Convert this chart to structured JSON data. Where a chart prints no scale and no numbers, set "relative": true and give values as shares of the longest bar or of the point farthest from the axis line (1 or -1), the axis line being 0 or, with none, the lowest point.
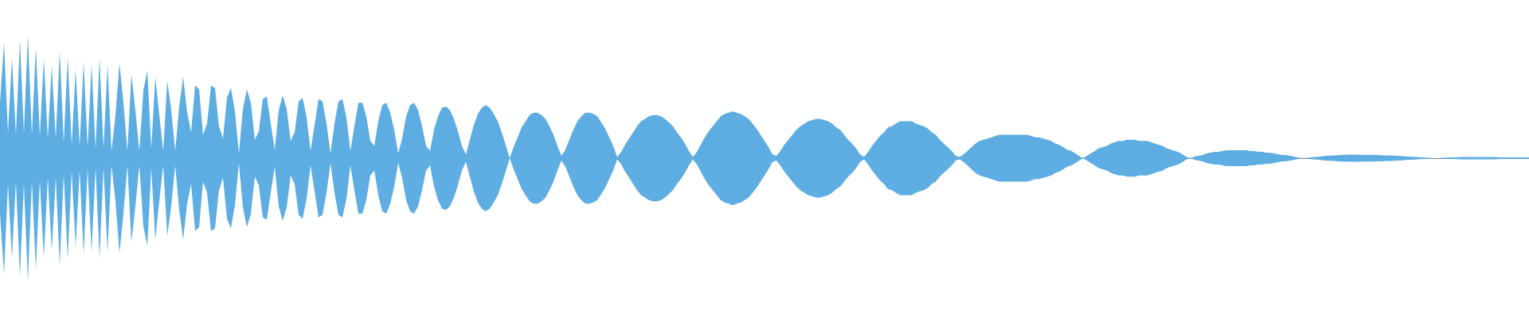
{
  "chart_data": {
    "type": "area",
    "relative": true,
    "categories": [
      null,
      null,
      null,
      null,
      null,
      null,
      null,
      null,
      null,
      null,
      null,
      null,
      null,
      null,
      null,
      null,
      null,
      null,
      null,
      null,
      null,
      null,
      null,
      null,
      null,
      null,
      null,
      null,
      null,
      null,
      null,
      null,
      null,
      null,
      null,
      null,
      null,
      null,
      null,
      null,
      null,
      null,
      null,
      null,
      null,
      null,
      null,
      null,
      null,
      null,
      null,
      null,
      null,
      null,
      null,
      null,
      null,
      null,
      null,
      null,
      null,
      null,
      null,
      null,
      null,
      null,
      null,
      null,
      null,
      null,
      null,
      null,
      null,
      null,
      null,
      null,
      null,
      null,
      null,
      null,
      null,
      null,
      null,
      null,
      null,
      null,
      null,
      null,
      null,
      null,
      null,
      null,
      null,
      null,
      null,
      null,
      null,
      null,
      null,
      null,
      null,
      null,
      null,
      null,
      null,
      null,
      null,
      null,
      null,
      null,
      null,
      null,
      null,
      null,
      null,
      null,
      null,
      null,
      null,
      null,
      null,
      null,
      null,
      null,
      null,
      null,
      null,
      null,
      null,
      null,
      null,
      null,
      null,
      null,
      null,
      null,
      null,
      null,
      null,
      null,
      null,
      null,
      null,
      null,
      null,
      null,
      null,
      null,
      null,
      null,
      null,
      null,
      null,
      null,
      null,
      null,
      null,
      null,
      null,
      null,
      null,
      null,
      null,
      null,
      null,
      null,
      null,
      null,
      null,
      null,
      null,
      null,
      null,
      null,
      null,
      null,
      null,
      null,
      null,
      null,
      null,
      null,
      null,
      null,
      null,
      null,
      null,
      null,
      null,
      null,
      null,
      null,
      null,
      null,
      null,
      null,
      null,
      null,
      null,
      null,
      null,
      null,
      null,
      null,
      null,
      null,
      null,
      null,
      null,
      null,
      null,
      null,
      null,
      null,
      null,
      null,
      null,
      null,
      null,
      null,
      null,
      null,
      null,
      null,
      null,
      null,
      null,
      null,
      null,
      null,
      null,
      null,
      null,
      null,
      null,
      null,
      null,
      null,
      null,
      null,
      null,
      null,
      null,
      null,
      null,
      null,
      null,
      null,
      null,
      null,
      null,
      null,
      null,
      null,
      null,
      null,
      null,
      null,
      null,
      null,
      null,
      null,
      null,
      null,
      null,
      null,
      null,
      null,
      null,
      null,
      null,
      null,
      null,
      null,
      null,
      null,
      null,
      null,
      null,
      null,
      null,
      null,
      null,
      null,
      null,
      null,
      null,
      null,
      null,
      null,
      null,
      null,
      null,
      null,
      null,
      null,
      null,
      null,
      null,
      null,
      null,
      null,
      null,
      null,
      null,
      null,
      null,
      null,
      null,
      null,
      null,
      null,
      null,
      null,
      null,
      null,
      null,
      null,
      null,
      null,
      null,
      null,
      null,
      null,
      null,
      null,
      null,
      null,
      null,
      null,
      null,
      null,
      null,
      null,
      null,
      null,
      null,
      null,
      null,
      null,
      null,
      null,
      null,
      null,
      null,
      null,
      null,
      null,
      null,
      null,
      null,
      null,
      null,
      null,
      null,
      null,
      null,
      null,
      null,
      null,
      null,
      null,
      null,
      null,
      null,
      null,
      null,
      null,
      null,
      null,
      null,
      null,
      null,
      null,
      null,
      null,
      null,
      null,
      null,
      null,
      null,
      null,
      null,
      null,
      null
    ],
    "series": [
      {
        "color": "#5dade2",
        "values": [
          0.45,
          0.94,
          0.21,
          0.81,
          0.19,
          0.96,
          0.21,
          1,
          0.19,
          0.9,
          0.18,
          0.81,
          0.16,
          0.75,
          0.16,
          0.87,
          0.13,
          0.82,
          0.11,
          0.72,
          0.1,
          0.78,
          0.09,
          0.76,
          0.08,
          0.81,
          0.08,
          0.76,
          0.06,
          0.35,
          0.77,
          0.45,
          0.06,
          0.68,
          0.39,
          0.06,
          0.55,
          0.71,
          0.08,
          0.66,
          0.35,
          0.06,
          0.63,
          0.39,
          0.06,
          0.42,
          0.66,
          0.37,
          0.21,
          0.59,
          0.56,
          0.19,
          0.28,
          0.59,
          0.57,
          0.26,
          0.16,
          0.49,
          0.57,
          0.38,
          0.04,
          0.4,
          0.56,
          0.45,
          0.15,
          0.22,
          0.48,
          0.5,
          0.28,
          0.07,
          0.39,
          0.51,
          0.4,
          0.14,
          0.21,
          0.46,
          0.49,
          0.33,
          0.06,
          0.27,
          0.48,
          0.46,
          0.28,
          0.04,
          0.28,
          0.46,
          0.48,
          0.33,
          0.06,
          0.26,
          0.45,
          0.45,
          0.34,
          0.14,
          0.1,
          0.3,
          0.43,
          0.45,
          0.37,
          0.23,
          0.04,
          0.16,
          0.34,
          0.43,
          0.45,
          0.39,
          0.26,
          0.1,
          0.06,
          0.23,
          0.34,
          0.41,
          0.42,
          0.39,
          0.32,
          0.22,
          0.1,
          0.03,
          0.15,
          0.27,
          0.36,
          0.41,
          0.43,
          0.41,
          0.36,
          0.3,
          0.21,
          0.11,
          0,
          0.09,
          0.17,
          0.25,
          0.3,
          0.35,
          0.37,
          0.37,
          0.35,
          0.32,
          0.26,
          0.19,
          0.1,
          0.02,
          0.07,
          0.15,
          0.23,
          0.3,
          0.34,
          0.37,
          0.37,
          0.36,
          0.34,
          0.29,
          0.24,
          0.17,
          0.1,
          0.01,
          0.05,
          0.11,
          0.16,
          0.21,
          0.26,
          0.3,
          0.32,
          0.34,
          0.35,
          0.35,
          0.34,
          0.32,
          0.29,
          0.26,
          0.21,
          0.17,
          0.12,
          0.06,
          0.01,
          0.05,
          0.11,
          0.17,
          0.22,
          0.26,
          0.3,
          0.34,
          0.36,
          0.37,
          0.38,
          0.37,
          0.36,
          0.34,
          0.32,
          0.28,
          0.24,
          0.19,
          0.14,
          0.09,
          0.03,
          0.02,
          0.06,
          0.11,
          0.15,
          0.19,
          0.23,
          0.26,
          0.28,
          0.3,
          0.31,
          0.32,
          0.32,
          0.31,
          0.3,
          0.28,
          0.25,
          0.23,
          0.19,
          0.15,
          0.12,
          0.08,
          0.03,
          0.01,
          0.05,
          0.1,
          0.14,
          0.18,
          0.21,
          0.25,
          0.26,
          0.28,
          0.3,
          0.3,
          0.3,
          0.3,
          0.28,
          0.27,
          0.26,
          0.24,
          0.21,
          0.19,
          0.15,
          0.12,
          0.09,
          0.06,
          0.02,
          0.01,
          0.03,
          0.06,
          0.09,
          0.12,
          0.14,
          0.15,
          0.16,
          0.17,
          0.18,
          0.19,
          0.19,
          0.19,
          0.19,
          0.19,
          0.19,
          0.19,
          0.19,
          0.18,
          0.17,
          0.17,
          0.16,
          0.15,
          0.14,
          0.12,
          0.11,
          0.09,
          0.07,
          0.06,
          0.04,
          0.02,
          0,
          0.02,
          0.04,
          0.06,
          0.08,
          0.09,
          0.1,
          0.12,
          0.13,
          0.14,
          0.14,
          0.15,
          0.15,
          0.15,
          0.14,
          0.14,
          0.14,
          0.13,
          0.12,
          0.11,
          0.1,
          0.08,
          0.07,
          0.06,
          0.05,
          0.03,
          0.01,
          0,
          0.013,
          0.019,
          0.026,
          0.039,
          0.045,
          0.052,
          0.052,
          0.058,
          0.065,
          0.065,
          0.065,
          0.065,
          0.065,
          0.065,
          0.058,
          0.058,
          0.052,
          0.052,
          0.045,
          0.045,
          0.039,
          0.032,
          0.026,
          0.026,
          0.019,
          0.013,
          0.006,
          0,
          0.002,
          0.006,
          0.009,
          0.012,
          0.016,
          0.019,
          0.021,
          0.023,
          0.025,
          0.027,
          0.028,
          0.029,
          0.029,
          0.029,
          0.028,
          0.028,
          0.028,
          0.027,
          0.026,
          0.025,
          0.023,
          0.022,
          0.021,
          0.019,
          0.017,
          0.015,
          0.013,
          0.011,
          0.009,
          0.006,
          0.005,
          0.003,
          0,
          0,
          0.003,
          0.005,
          0.006,
          0.006,
          0.008,
          0.009,
          0.01,
          0.01,
          0.01,
          0.01,
          0.01,
          0.01,
          0.01,
          0.009,
          0.008,
          0.006,
          0.006,
          0.006,
          0.006,
          0.006,
          0.006,
          0.006,
          0.006
        ]
      },
      {
        "color": "#5eaee3",
        "values": [
          -0.45,
          -0.94,
          -0.21,
          -0.81,
          -0.19,
          -0.96,
          -0.21,
          -1,
          -0.19,
          -0.9,
          -0.18,
          -0.81,
          -0.16,
          -0.75,
          -0.16,
          -0.87,
          -0.13,
          -0.82,
          -0.11,
          -0.72,
          -0.1,
          -0.78,
          -0.09,
          -0.76,
          -0.08,
          -0.81,
          -0.08,
          -0.76,
          -0.06,
          -0.35,
          -0.77,
          -0.45,
          -0.06,
          -0.68,
          -0.39,
          -0.06,
          -0.55,
          -0.71,
          -0.08,
          -0.66,
          -0.35,
          -0.06,
          -0.63,
          -0.39,
          -0.06,
          -0.42,
          -0.66,
          -0.37,
          -0.21,
          -0.59,
          -0.56,
          -0.19,
          -0.28,
          -0.59,
          -0.57,
          -0.26,
          -0.16,
          -0.49,
          -0.57,
          -0.38,
          -0.04,
          -0.4,
          -0.56,
          -0.45,
          -0.15,
          -0.22,
          -0.48,
          -0.5,
          -0.28,
          -0.07,
          -0.39,
          -0.51,
          -0.4,
          -0.14,
          -0.21,
          -0.46,
          -0.49,
          -0.33,
          -0.06,
          -0.27,
          -0.48,
          -0.46,
          -0.28,
          -0.04,
          -0.28,
          -0.46,
          -0.48,
          -0.33,
          -0.06,
          -0.26,
          -0.45,
          -0.45,
          -0.34,
          -0.14,
          -0.1,
          -0.3,
          -0.43,
          -0.45,
          -0.37,
          -0.23,
          -0.04,
          -0.16,
          -0.34,
          -0.43,
          -0.45,
          -0.39,
          -0.26,
          -0.1,
          -0.06,
          -0.23,
          -0.34,
          -0.41,
          -0.42,
          -0.39,
          -0.32,
          -0.22,
          -0.1,
          -0.03,
          -0.15,
          -0.27,
          -0.36,
          -0.41,
          -0.43,
          -0.41,
          -0.36,
          -0.3,
          -0.21,
          -0.11,
          0,
          -0.09,
          -0.17,
          -0.25,
          -0.3,
          -0.35,
          -0.37,
          -0.37,
          -0.35,
          -0.32,
          -0.26,
          -0.19,
          -0.1,
          -0.02,
          -0.07,
          -0.15,
          -0.23,
          -0.3,
          -0.34,
          -0.37,
          -0.37,
          -0.36,
          -0.34,
          -0.29,
          -0.24,
          -0.17,
          -0.1,
          -0.01,
          -0.05,
          -0.11,
          -0.16,
          -0.21,
          -0.26,
          -0.3,
          -0.32,
          -0.34,
          -0.35,
          -0.35,
          -0.34,
          -0.32,
          -0.29,
          -0.26,
          -0.21,
          -0.17,
          -0.12,
          -0.06,
          -0.01,
          -0.05,
          -0.11,
          -0.17,
          -0.22,
          -0.26,
          -0.3,
          -0.34,
          -0.36,
          -0.37,
          -0.38,
          -0.37,
          -0.36,
          -0.34,
          -0.32,
          -0.28,
          -0.24,
          -0.19,
          -0.14,
          -0.09,
          -0.03,
          -0.02,
          -0.06,
          -0.11,
          -0.15,
          -0.19,
          -0.23,
          -0.26,
          -0.28,
          -0.3,
          -0.31,
          -0.32,
          -0.32,
          -0.31,
          -0.3,
          -0.28,
          -0.25,
          -0.23,
          -0.19,
          -0.15,
          -0.12,
          -0.08,
          -0.03,
          -0.01,
          -0.05,
          -0.1,
          -0.14,
          -0.18,
          -0.21,
          -0.25,
          -0.26,
          -0.28,
          -0.3,
          -0.3,
          -0.3,
          -0.3,
          -0.28,
          -0.27,
          -0.26,
          -0.24,
          -0.21,
          -0.19,
          -0.15,
          -0.12,
          -0.09,
          -0.06,
          -0.02,
          -0.01,
          -0.03,
          -0.06,
          -0.09,
          -0.12,
          -0.14,
          -0.15,
          -0.16,
          -0.17,
          -0.18,
          -0.19,
          -0.19,
          -0.19,
          -0.19,
          -0.19,
          -0.19,
          -0.19,
          -0.19,
          -0.18,
          -0.17,
          -0.17,
          -0.16,
          -0.15,
          -0.14,
          -0.12,
          -0.11,
          -0.09,
          -0.07,
          -0.06,
          -0.04,
          -0.02,
          0,
          -0.02,
          -0.04,
          -0.06,
          -0.08,
          -0.09,
          -0.1,
          -0.12,
          -0.13,
          -0.14,
          -0.14,
          -0.15,
          -0.15,
          -0.15,
          -0.14,
          -0.14,
          -0.14,
          -0.13,
          -0.12,
          -0.11,
          -0.1,
          -0.08,
          -0.07,
          -0.06,
          -0.05,
          -0.03,
          -0.01,
          0,
          -0.013,
          -0.019,
          -0.026,
          -0.039,
          -0.045,
          -0.052,
          -0.052,
          -0.058,
          -0.065,
          -0.065,
          -0.065,
          -0.065,
          -0.065,
          -0.065,
          -0.058,
          -0.058,
          -0.052,
          -0.052,
          -0.045,
          -0.045,
          -0.039,
          -0.032,
          -0.026,
          -0.026,
          -0.019,
          -0.013,
          -0.006,
          0,
          -0.002,
          -0.006,
          -0.009,
          -0.012,
          -0.016,
          -0.019,
          -0.021,
          -0.023,
          -0.025,
          -0.027,
          -0.028,
          -0.029,
          -0.029,
          -0.029,
          -0.028,
          -0.028,
          -0.028,
          -0.027,
          -0.026,
          -0.025,
          -0.023,
          -0.022,
          -0.021,
          -0.019,
          -0.017,
          -0.015,
          -0.013,
          -0.011,
          -0.009,
          -0.006,
          -0.005,
          -0.003,
          0,
          0,
          -0.003,
          -0.005,
          -0.006,
          -0.006,
          -0.008,
          -0.009,
          -0.01,
          -0.01,
          -0.01,
          -0.01,
          -0.01,
          -0.01,
          -0.01,
          -0.009,
          -0.008,
          -0.006,
          -0.006,
          -0.006,
          -0.006,
          -0.006,
          -0.006,
          -0.006,
          -0.006
        ]
      }
    ]
  }
}
